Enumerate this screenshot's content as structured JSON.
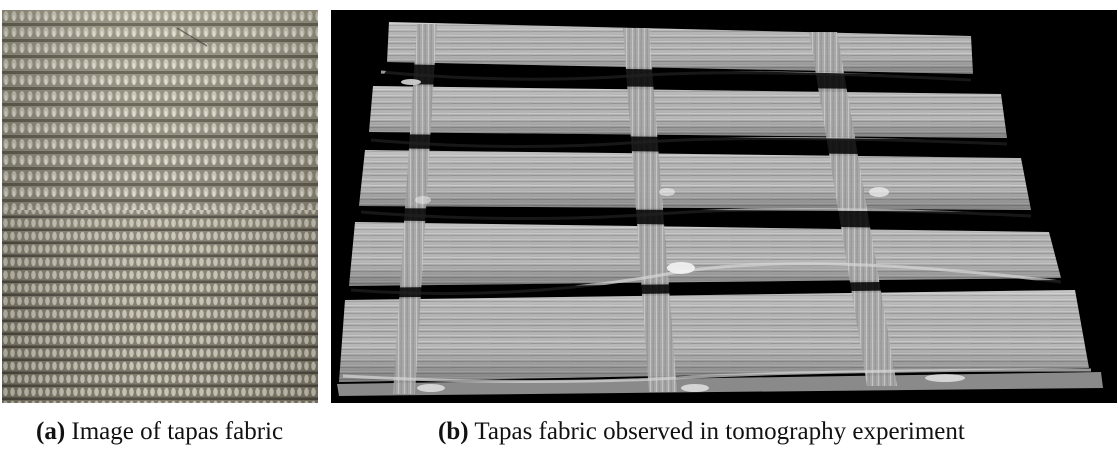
{
  "figure": {
    "panel_a": {
      "caption_tag": "(a)",
      "caption_text": " Image of tapas fabric"
    },
    "panel_b": {
      "caption_tag": "(b)",
      "caption_text": " Tapas fabric observed in tomography experiment"
    }
  },
  "colors": {
    "photo_base": "#8f8a78",
    "tomo_background": "#000000",
    "tomo_fiber": "#b8b8b8"
  }
}
